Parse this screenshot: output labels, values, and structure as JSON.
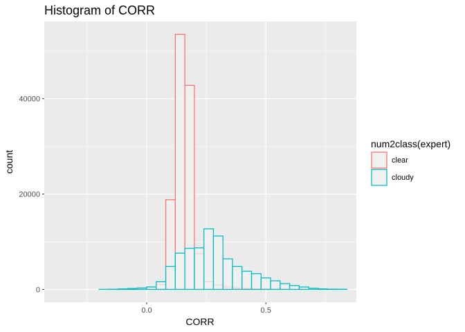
{
  "chart_data": {
    "type": "bar",
    "title": "Histogram of CORR",
    "xlabel": "CORR",
    "ylabel": "count",
    "xlim": [
      -0.43,
      0.88
    ],
    "ylim": [
      -2700,
      56200
    ],
    "bin_width": 0.04,
    "bin_centers": [
      -0.38,
      -0.34,
      -0.3,
      -0.26,
      -0.22,
      -0.18,
      -0.14,
      -0.1,
      -0.06,
      -0.02,
      0.02,
      0.06,
      0.1,
      0.14,
      0.18,
      0.22,
      0.26,
      0.3,
      0.34,
      0.38,
      0.42,
      0.46,
      0.5,
      0.54,
      0.58,
      0.62,
      0.66,
      0.7,
      0.74,
      0.78,
      0.82
    ],
    "x_ticks": [
      0.0,
      0.5
    ],
    "x_tick_labels": [
      "0.0",
      "0.5"
    ],
    "y_ticks": [
      0,
      20000,
      40000
    ],
    "y_tick_labels": [
      "0",
      "20000",
      "40000"
    ],
    "grid": true,
    "legend_placement": "right",
    "legend_title": "num2class(expert)",
    "series": [
      {
        "name": "clear",
        "color": "#F8766D",
        "values": [
          0,
          0,
          0,
          0,
          0,
          0,
          0,
          50,
          100,
          200,
          500,
          1000,
          18800,
          53500,
          42800,
          7500,
          1600,
          900,
          500,
          300,
          200,
          100,
          80,
          50,
          30,
          20,
          10,
          0,
          0,
          0,
          0
        ]
      },
      {
        "name": "cloudy",
        "color": "#00BFC4",
        "values": [
          0,
          0,
          0,
          0,
          0,
          10,
          30,
          100,
          200,
          300,
          500,
          1600,
          4800,
          7600,
          8600,
          8700,
          12700,
          11200,
          6400,
          4800,
          3800,
          3300,
          2400,
          1800,
          1200,
          800,
          500,
          250,
          100,
          50,
          30
        ]
      }
    ]
  }
}
